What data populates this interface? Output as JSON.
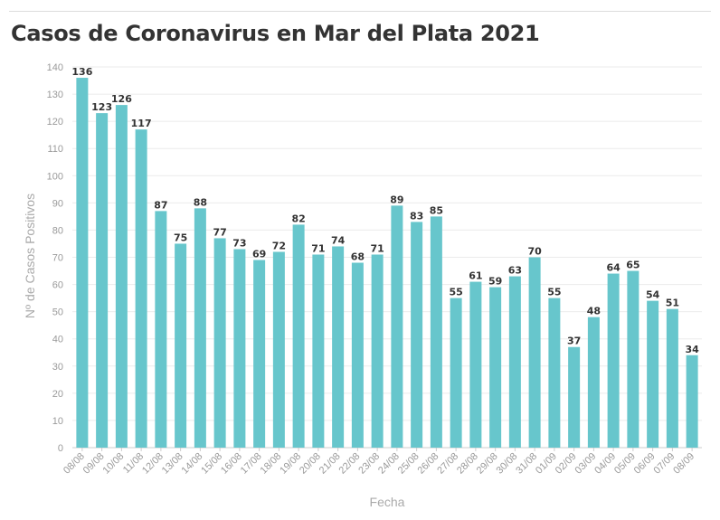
{
  "chart_data": {
    "type": "bar",
    "title": "Casos de Coronavirus en Mar del Plata 2021",
    "xlabel": "Fecha",
    "ylabel": "Nº de Casos Positivos",
    "ylim": [
      0,
      140
    ],
    "yticks": [
      0,
      10,
      20,
      30,
      40,
      50,
      60,
      70,
      80,
      90,
      100,
      110,
      120,
      130,
      140
    ],
    "grid": true,
    "bar_color": "#67c6cc",
    "categories": [
      "08/08",
      "09/08",
      "10/08",
      "11/08",
      "12/08",
      "13/08",
      "14/08",
      "15/08",
      "16/08",
      "17/08",
      "18/08",
      "19/08",
      "20/08",
      "21/08",
      "22/08",
      "23/08",
      "24/08",
      "25/08",
      "26/08",
      "27/08",
      "28/08",
      "29/08",
      "30/08",
      "31/08",
      "01/09",
      "02/09",
      "03/09",
      "04/09",
      "05/09",
      "06/09",
      "07/09",
      "08/09"
    ],
    "values": [
      136,
      123,
      126,
      117,
      87,
      75,
      88,
      77,
      73,
      69,
      72,
      82,
      71,
      74,
      68,
      71,
      89,
      83,
      85,
      55,
      61,
      59,
      63,
      70,
      55,
      37,
      48,
      64,
      65,
      54,
      51,
      34
    ]
  }
}
